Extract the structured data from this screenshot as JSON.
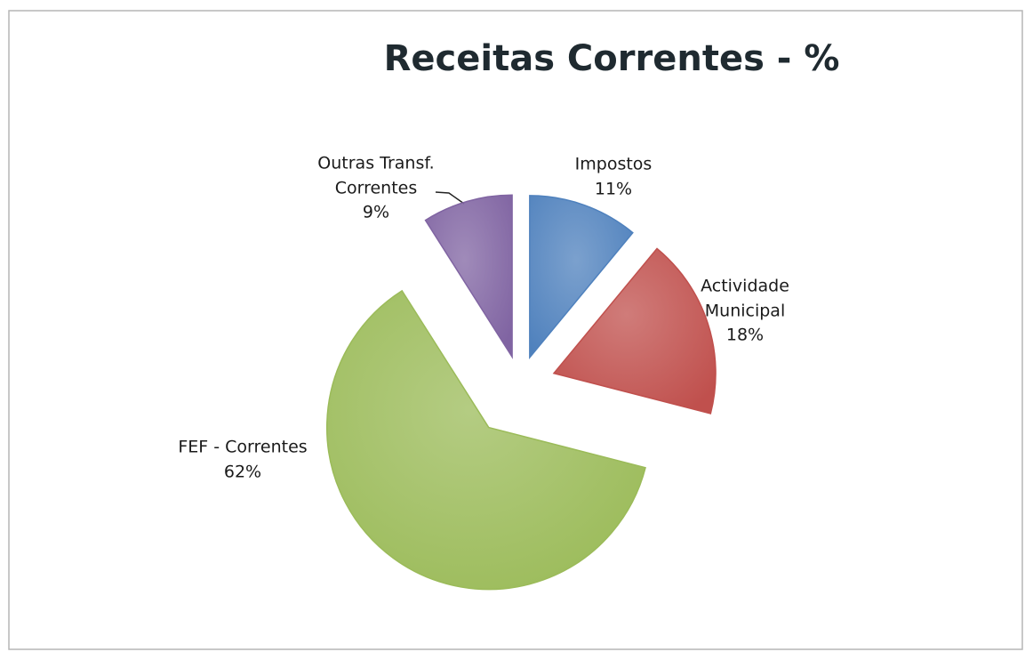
{
  "chart_data": {
    "type": "pie",
    "title": "Receitas Correntes - %",
    "categories": [
      "Impostos",
      "Actividade Municipal",
      "FEF - Correntes",
      "Outras Transf. Correntes"
    ],
    "values": [
      11,
      18,
      62,
      9
    ],
    "value_labels": [
      "11%",
      "18%",
      "62%",
      "9%"
    ],
    "colors": [
      "#4f81bd",
      "#c0504d",
      "#9bbb59",
      "#8064a2"
    ]
  }
}
